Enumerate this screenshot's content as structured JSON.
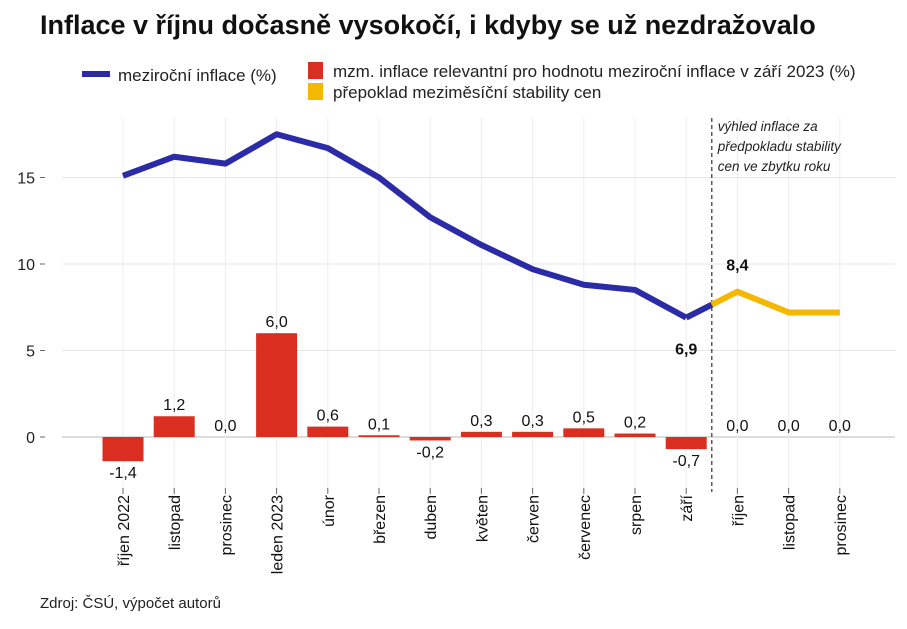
{
  "title": "Inflace v říjnu dočasně vysokočí, i kdyby se už nezdražovalo",
  "legend": {
    "line": "meziroční inflace (%)",
    "bar": "mzm. inflace relevantní pro hodnotu meziroční inflace v září 2023 (%)",
    "forecast": "přepoklad meziměsíční stability cen"
  },
  "annotation": [
    "výhled inflace za",
    "předpokladu stability",
    "cen ve zbytku roku"
  ],
  "source": "Zdroj: ČSÚ, výpočet autorů",
  "colors": {
    "line": "#2b2ba8",
    "bar": "#d92e20",
    "forecast": "#f5b800"
  },
  "chart_data": {
    "type": "bar",
    "categories": [
      "říjen 2022",
      "listopad",
      "prosinec",
      "leden 2023",
      "únor",
      "březen",
      "duben",
      "květen",
      "červen",
      "červenec",
      "srpen",
      "září",
      "říjen",
      "listopad",
      "prosinec"
    ],
    "series": [
      {
        "name": "mzm. inflace relevantní pro hodnotu meziroční inflace v září 2023 (%)",
        "type": "bar",
        "values": [
          -1.4,
          1.2,
          0.0,
          6.0,
          0.6,
          0.1,
          -0.2,
          0.3,
          0.3,
          0.5,
          0.2,
          -0.7,
          0.0,
          0.0,
          0.0
        ],
        "labels": [
          "-1,4",
          "1,2",
          "0,0",
          "6,0",
          "0,6",
          "0,1",
          "-0,2",
          "0,3",
          "0,3",
          "0,5",
          "0,2",
          "-0,7",
          "0,0",
          "0,0",
          "0,0"
        ]
      },
      {
        "name": "meziroční inflace (%)",
        "type": "line",
        "values": [
          15.1,
          16.2,
          15.8,
          17.5,
          16.7,
          15.0,
          12.7,
          11.1,
          9.7,
          8.8,
          8.5,
          6.9,
          null,
          null,
          null
        ]
      },
      {
        "name": "přepoklad meziměsíční stability cen",
        "type": "line",
        "values": [
          null,
          null,
          null,
          null,
          null,
          null,
          null,
          null,
          null,
          null,
          null,
          6.9,
          8.4,
          7.2,
          7.2
        ]
      }
    ],
    "line_labels": [
      {
        "category": "září",
        "text": "6,9"
      },
      {
        "category": "říjen",
        "text": "8,4"
      }
    ],
    "ylim": [
      -3,
      18
    ],
    "yticks": [
      0,
      5,
      10,
      15
    ],
    "ytick_labels": [
      "0",
      "5",
      "10",
      "15"
    ],
    "grid": true,
    "legend_position": "top"
  }
}
